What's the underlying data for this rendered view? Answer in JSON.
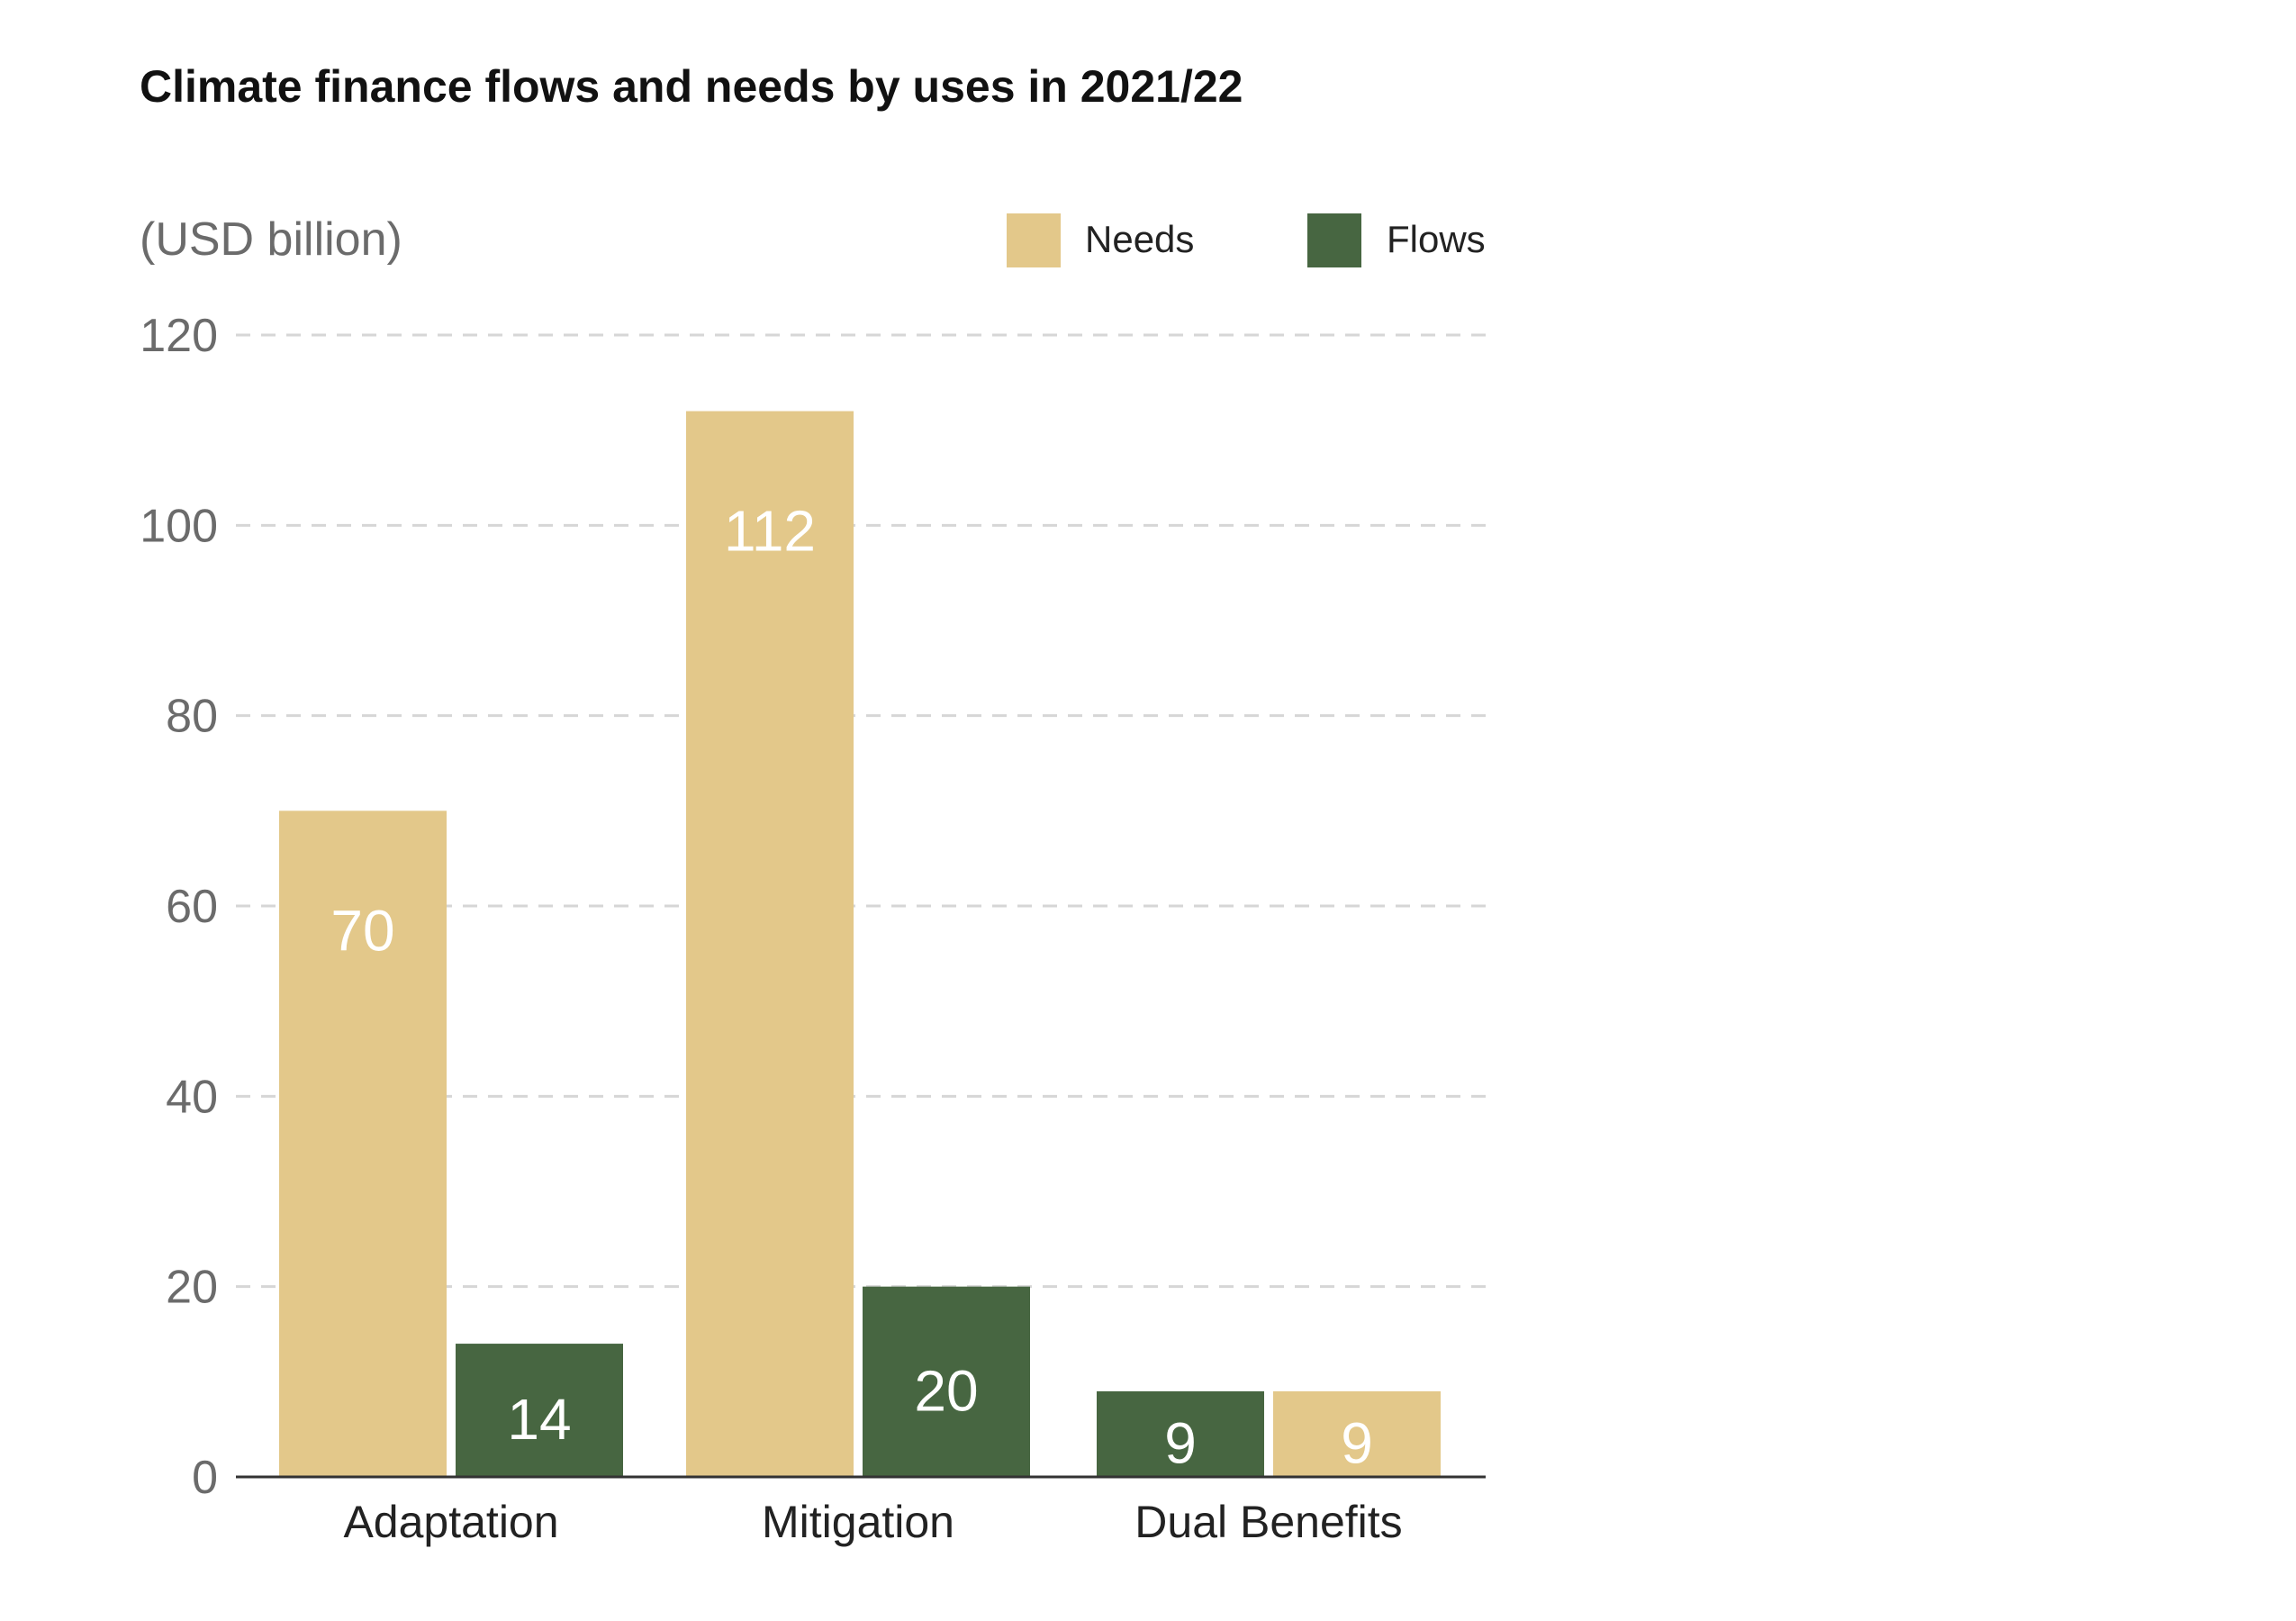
{
  "chart_data": {
    "type": "bar",
    "title": "Climate finance flows and needs by uses in 2021/22",
    "unit_label": "(USD billion)",
    "xlabel": "",
    "ylabel": "",
    "ylim": [
      0,
      120
    ],
    "yticks": [
      "0",
      "20",
      "40",
      "60",
      "80",
      "100",
      "120"
    ],
    "grid": true,
    "legend_position": "top-right",
    "legend": [
      {
        "name": "Needs",
        "color": "#e3c88a"
      },
      {
        "name": "Flows",
        "color": "#476641"
      }
    ],
    "categories": [
      "Adaptation",
      "Mitigation",
      "Dual Benefits"
    ],
    "bars": [
      [
        {
          "series": "Needs",
          "value": 70,
          "label": "70"
        },
        {
          "series": "Flows",
          "value": 14,
          "label": "14"
        }
      ],
      [
        {
          "series": "Needs",
          "value": 112,
          "label": "112"
        },
        {
          "series": "Flows",
          "value": 20,
          "label": "20"
        }
      ],
      [
        {
          "series": "Flows",
          "value": 9,
          "label": "9"
        },
        {
          "series": "Needs",
          "value": 9,
          "label": "9"
        }
      ]
    ]
  }
}
